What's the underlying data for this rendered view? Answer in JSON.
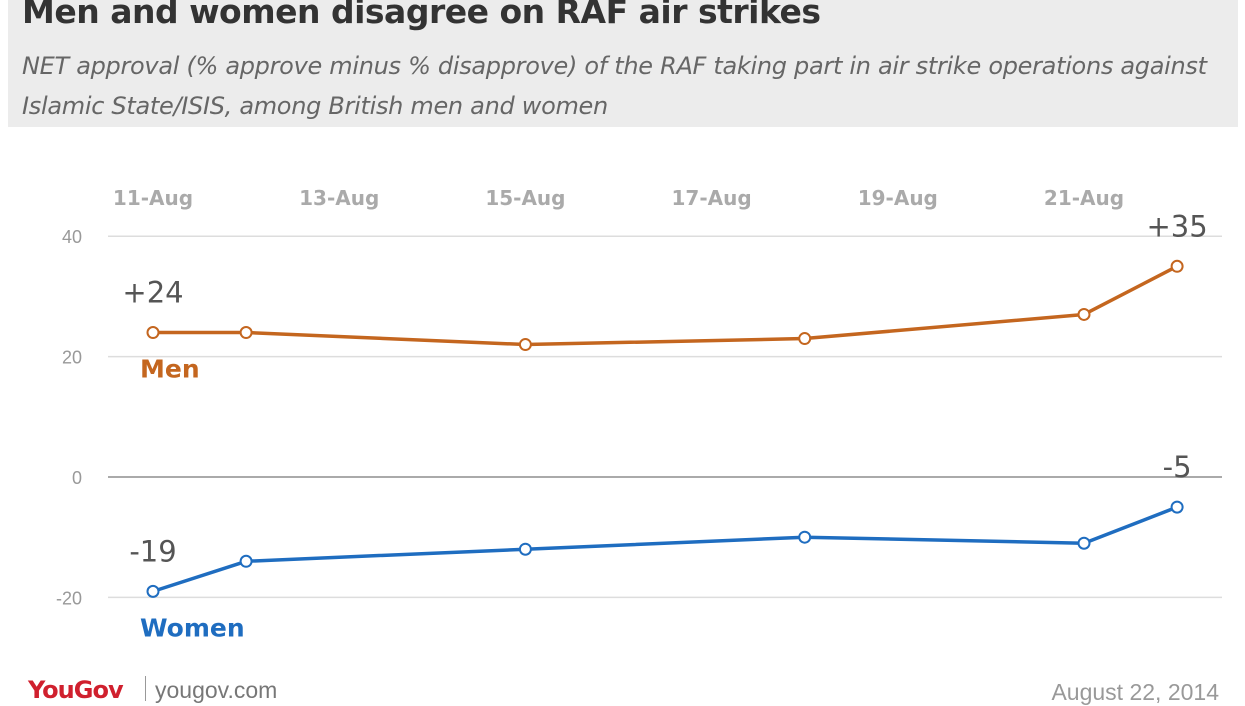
{
  "title": "Men and women disagree on RAF air strikes",
  "subtitle": "NET approval (% approve minus % disapprove) of the RAF taking part in air strike operations against Islamic State/ISIS, among British men and women",
  "footer": {
    "logo": "YouGov",
    "site": "yougov.com",
    "date": "August 22, 2014"
  },
  "chart_data": {
    "type": "line",
    "x_ticks": [
      "11-Aug",
      "13-Aug",
      "15-Aug",
      "17-Aug",
      "19-Aug",
      "21-Aug"
    ],
    "x": [
      "11-Aug",
      "12-Aug",
      "15-Aug",
      "18-Aug",
      "21-Aug",
      "22-Aug"
    ],
    "y_ticks": [
      40,
      20,
      0,
      -20
    ],
    "ylim": [
      -20,
      40
    ],
    "grid": true,
    "series": [
      {
        "name": "Men",
        "color": "#c4661f",
        "values": [
          24,
          24,
          22,
          23,
          27,
          35
        ],
        "labels": {
          "first": "+24",
          "last": "+35"
        }
      },
      {
        "name": "Women",
        "color": "#1f6dc0",
        "values": [
          -19,
          -14,
          -12,
          -10,
          -11,
          -5
        ],
        "labels": {
          "first": "-19",
          "last": "-5"
        }
      }
    ]
  }
}
